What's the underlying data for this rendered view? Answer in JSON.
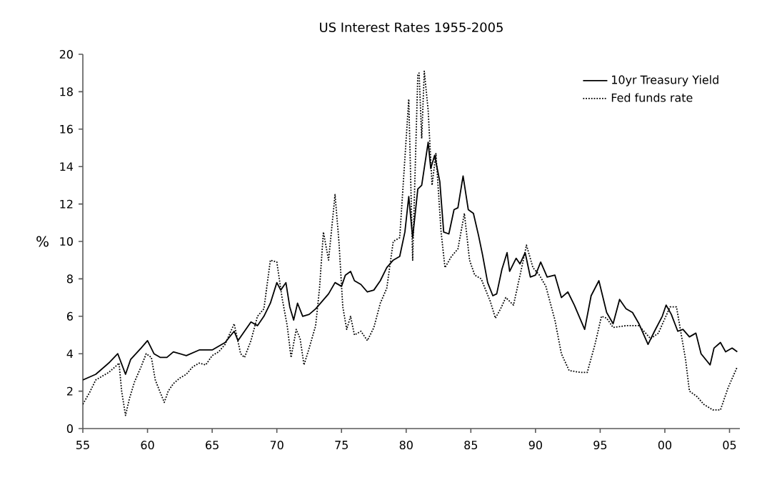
{
  "chart_data": {
    "type": "line",
    "title": "US Interest Rates 1955-2005",
    "ylabel": "%",
    "xlim": [
      1955,
      2005.8
    ],
    "ylim": [
      0,
      20
    ],
    "xticks": [
      {
        "value": 1955,
        "label": "55"
      },
      {
        "value": 1960,
        "label": "60"
      },
      {
        "value": 1965,
        "label": "65"
      },
      {
        "value": 1970,
        "label": "70"
      },
      {
        "value": 1975,
        "label": "75"
      },
      {
        "value": 1980,
        "label": "80"
      },
      {
        "value": 1985,
        "label": "85"
      },
      {
        "value": 1990,
        "label": "90"
      },
      {
        "value": 1995,
        "label": "95"
      },
      {
        "value": 2000,
        "label": "00"
      },
      {
        "value": 2005,
        "label": "05"
      }
    ],
    "yticks": [
      0,
      2,
      4,
      6,
      8,
      10,
      12,
      14,
      16,
      18,
      20
    ],
    "grid": false,
    "legend": "top right",
    "marker": "none",
    "series": [
      {
        "name": "10yr Treasury Yield",
        "color": "#000000",
        "line_style": "solid",
        "x": [
          1955.0,
          1956.0,
          1957.0,
          1957.7,
          1958.3,
          1958.7,
          1959.5,
          1960.0,
          1960.5,
          1961.0,
          1961.5,
          1962.0,
          1963.0,
          1964.0,
          1965.0,
          1966.0,
          1966.7,
          1967.0,
          1967.5,
          1968.0,
          1968.5,
          1969.0,
          1969.5,
          1970.0,
          1970.3,
          1970.7,
          1971.0,
          1971.3,
          1971.6,
          1972.0,
          1972.5,
          1973.0,
          1973.5,
          1974.0,
          1974.5,
          1975.0,
          1975.3,
          1975.7,
          1976.0,
          1976.5,
          1977.0,
          1977.5,
          1978.0,
          1978.5,
          1979.0,
          1979.5,
          1979.9,
          1980.2,
          1980.5,
          1980.9,
          1981.2,
          1981.7,
          1981.9,
          1982.2,
          1982.6,
          1982.9,
          1983.3,
          1983.7,
          1984.0,
          1984.4,
          1984.8,
          1985.2,
          1985.6,
          1985.9,
          1986.3,
          1986.7,
          1987.0,
          1987.4,
          1987.8,
          1988.0,
          1988.5,
          1988.8,
          1989.2,
          1989.6,
          1990.0,
          1990.4,
          1990.9,
          1991.5,
          1992.0,
          1992.5,
          1993.0,
          1993.8,
          1994.3,
          1994.9,
          1995.5,
          1996.0,
          1996.5,
          1997.0,
          1997.5,
          1998.0,
          1998.7,
          1999.2,
          1999.8,
          2000.1,
          2000.5,
          2001.0,
          2001.4,
          2001.9,
          2002.4,
          2002.8,
          2003.5,
          2003.8,
          2004.3,
          2004.7,
          2005.2,
          2005.6
        ],
        "values": [
          2.6,
          2.9,
          3.5,
          4.0,
          2.9,
          3.7,
          4.3,
          4.7,
          4.0,
          3.8,
          3.8,
          4.1,
          3.9,
          4.2,
          4.2,
          4.6,
          5.2,
          4.7,
          5.2,
          5.7,
          5.5,
          6.0,
          6.7,
          7.8,
          7.4,
          7.8,
          6.5,
          5.8,
          6.7,
          6.0,
          6.1,
          6.4,
          6.8,
          7.2,
          7.8,
          7.6,
          8.2,
          8.4,
          7.9,
          7.7,
          7.3,
          7.4,
          7.9,
          8.6,
          9.0,
          9.2,
          10.5,
          12.4,
          10.2,
          12.8,
          13.0,
          15.3,
          13.9,
          14.6,
          13.2,
          10.5,
          10.4,
          11.7,
          11.8,
          13.5,
          11.7,
          11.5,
          10.3,
          9.3,
          7.8,
          7.1,
          7.2,
          8.5,
          9.4,
          8.4,
          9.1,
          8.8,
          9.4,
          8.1,
          8.2,
          8.9,
          8.1,
          8.2,
          7.0,
          7.3,
          6.6,
          5.3,
          7.1,
          7.9,
          6.2,
          5.6,
          6.9,
          6.4,
          6.2,
          5.6,
          4.5,
          5.2,
          6.0,
          6.6,
          6.1,
          5.2,
          5.3,
          4.9,
          5.1,
          4.0,
          3.4,
          4.3,
          4.6,
          4.1,
          4.3,
          4.1
        ]
      },
      {
        "name": "Fed funds rate",
        "color": "#000000",
        "line_style": "dotted",
        "x": [
          1955.0,
          1955.5,
          1956.0,
          1956.5,
          1957.0,
          1957.5,
          1957.8,
          1958.0,
          1958.3,
          1958.6,
          1959.0,
          1959.5,
          1959.9,
          1960.3,
          1960.6,
          1961.0,
          1961.3,
          1961.6,
          1962.0,
          1962.5,
          1963.0,
          1963.5,
          1964.0,
          1964.5,
          1965.0,
          1965.5,
          1966.0,
          1966.7,
          1967.2,
          1967.5,
          1968.0,
          1968.5,
          1969.0,
          1969.5,
          1970.0,
          1970.4,
          1970.8,
          1971.1,
          1971.5,
          1971.8,
          1972.1,
          1972.5,
          1973.0,
          1973.3,
          1973.6,
          1974.0,
          1974.5,
          1974.8,
          1975.1,
          1975.4,
          1975.7,
          1976.0,
          1976.5,
          1977.0,
          1977.5,
          1978.0,
          1978.5,
          1979.0,
          1979.5,
          1980.2,
          1980.5,
          1980.9,
          1981.0,
          1981.2,
          1981.4,
          1981.7,
          1982.0,
          1982.3,
          1982.7,
          1983.0,
          1983.5,
          1984.0,
          1984.5,
          1984.9,
          1985.3,
          1985.8,
          1986.5,
          1986.9,
          1987.3,
          1987.7,
          1988.3,
          1988.9,
          1989.3,
          1989.8,
          1990.3,
          1990.8,
          1991.5,
          1992.0,
          1992.6,
          1993.5,
          1994.0,
          1994.6,
          1995.1,
          1995.5,
          1996.0,
          1997.0,
          1998.0,
          1998.9,
          1999.5,
          2000.4,
          2000.9,
          2001.2,
          2001.6,
          2001.9,
          2002.5,
          2003.0,
          2003.7,
          2004.3,
          2004.9,
          2005.6
        ],
        "values": [
          1.3,
          1.9,
          2.6,
          2.8,
          3.0,
          3.3,
          3.5,
          2.0,
          0.7,
          1.6,
          2.5,
          3.3,
          4.0,
          3.8,
          2.6,
          1.9,
          1.4,
          2.0,
          2.4,
          2.7,
          2.9,
          3.3,
          3.5,
          3.4,
          3.9,
          4.1,
          4.5,
          5.6,
          4.0,
          3.8,
          4.7,
          6.0,
          6.4,
          9.0,
          8.9,
          7.0,
          5.5,
          3.8,
          5.3,
          4.8,
          3.4,
          4.3,
          5.5,
          7.5,
          10.5,
          9.0,
          12.5,
          10.0,
          6.5,
          5.3,
          6.0,
          5.0,
          5.2,
          4.7,
          5.4,
          6.7,
          7.5,
          10.0,
          10.2,
          17.6,
          9.0,
          18.9,
          19.0,
          15.5,
          19.1,
          17.0,
          13.0,
          14.7,
          10.5,
          8.6,
          9.2,
          9.6,
          11.5,
          9.0,
          8.2,
          8.0,
          6.8,
          5.9,
          6.4,
          7.0,
          6.6,
          8.5,
          9.8,
          8.6,
          8.2,
          7.6,
          5.8,
          4.0,
          3.1,
          3.0,
          3.0,
          4.5,
          6.0,
          5.9,
          5.4,
          5.5,
          5.5,
          4.8,
          5.1,
          6.5,
          6.5,
          5.3,
          3.7,
          2.0,
          1.7,
          1.3,
          1.0,
          1.0,
          2.2,
          3.3
        ]
      }
    ]
  }
}
